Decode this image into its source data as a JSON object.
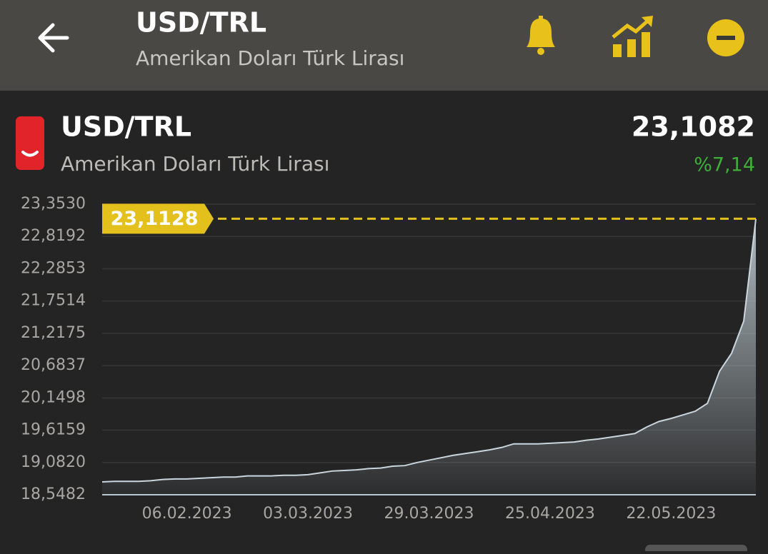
{
  "header": {
    "title": "USD/TRL",
    "subtitle": "Amerikan Doları Türk Lirası"
  },
  "card": {
    "title": "USD/TRL",
    "subtitle": "Amerikan Doları Türk Lirası",
    "price": "23,1082",
    "change": "%7,14"
  },
  "chart_data": {
    "type": "area",
    "color": "#c9d6de",
    "categories": [
      null,
      null,
      null,
      null,
      null,
      null,
      null,
      "06.02.2023",
      null,
      null,
      null,
      null,
      null,
      null,
      null,
      null,
      null,
      "03.03.2023",
      null,
      null,
      null,
      null,
      null,
      null,
      null,
      null,
      null,
      "29.03.2023",
      null,
      null,
      null,
      null,
      null,
      null,
      null,
      null,
      null,
      "25.04.2023",
      null,
      null,
      null,
      null,
      null,
      null,
      null,
      null,
      null,
      "22.05.2023",
      null,
      null,
      null,
      null,
      null,
      null,
      null
    ],
    "values": [
      18.76,
      18.77,
      18.77,
      18.77,
      18.78,
      18.8,
      18.81,
      18.81,
      18.82,
      18.83,
      18.84,
      18.84,
      18.86,
      18.86,
      18.86,
      18.87,
      18.87,
      18.88,
      18.91,
      18.94,
      18.95,
      18.96,
      18.98,
      18.99,
      19.02,
      19.03,
      19.08,
      19.12,
      19.16,
      19.2,
      19.23,
      19.26,
      19.29,
      19.33,
      19.39,
      19.39,
      19.39,
      19.4,
      19.41,
      19.42,
      19.45,
      19.47,
      19.5,
      19.53,
      19.56,
      19.67,
      19.76,
      19.81,
      19.87,
      19.93,
      20.06,
      20.59,
      20.89,
      21.42,
      23.11
    ],
    "ylim": [
      18.5482,
      23.353
    ],
    "yticks": [
      {
        "value": 18.5482,
        "label": "18,5482"
      },
      {
        "value": 19.082,
        "label": "19,0820"
      },
      {
        "value": 19.6159,
        "label": "19,6159"
      },
      {
        "value": 20.1498,
        "label": "20,1498"
      },
      {
        "value": 20.6837,
        "label": "20,6837"
      },
      {
        "value": 21.2175,
        "label": "21,2175"
      },
      {
        "value": 21.7514,
        "label": "21,7514"
      },
      {
        "value": 22.2853,
        "label": "22,2853"
      },
      {
        "value": 22.8192,
        "label": "22,8192"
      },
      {
        "value": 23.353,
        "label": "23,3530"
      }
    ],
    "reference": {
      "value": 23.1128,
      "label": "23,1128",
      "color": "#e3c01c"
    },
    "grid": true
  }
}
